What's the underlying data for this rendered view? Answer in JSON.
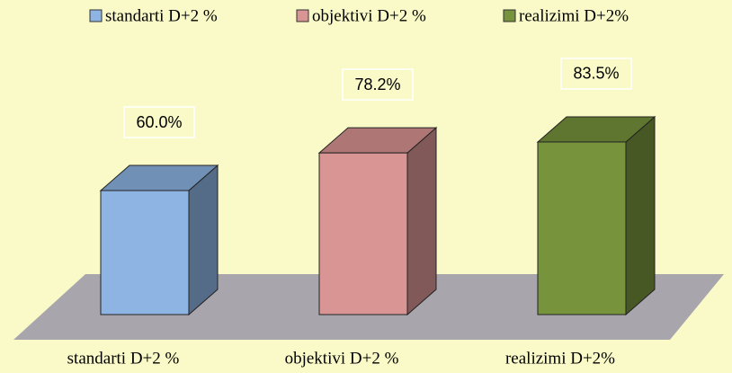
{
  "chart_data": {
    "type": "bar3d",
    "categories": [
      "standarti D+2 %",
      "objektivi D+2 %",
      "realizimi D+2%"
    ],
    "values": [
      60.0,
      78.2,
      83.5
    ],
    "value_labels": [
      "60.0%",
      "78.2%",
      "83.5%"
    ],
    "colors": [
      "#8db4e2",
      "#d99594",
      "#77933c"
    ]
  }
}
